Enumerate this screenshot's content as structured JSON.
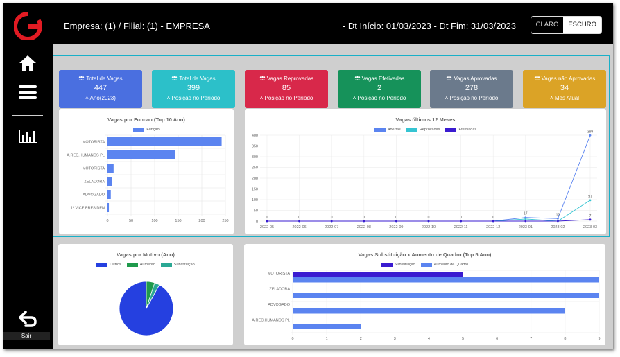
{
  "sidebar": {
    "logo_icon": "g-logo-icon",
    "home_icon": "home-icon",
    "menu_icon": "hamburger-menu-icon",
    "reports_icon": "bar-chart-icon",
    "logout_icon": "logout-arrow-icon",
    "logout_label": "Sair"
  },
  "header": {
    "empresa": "Empresa: (1) / Filial: (1) -  EMPRESA",
    "dates": "- Dt Início: 01/03/2023 - Dt Fim: 31/03/2023",
    "theme_light": "CLARO",
    "theme_dark": "ESCURO"
  },
  "cards": [
    {
      "title": "Total de Vagas",
      "value": "447",
      "footer": "Ano(2023)",
      "color": "#4a6fe0"
    },
    {
      "title": "Total de Vagas",
      "value": "399",
      "footer": "Posição no Período",
      "color": "#2cc0c9"
    },
    {
      "title": "Vagas Reprovadas",
      "value": "85",
      "footer": "Posição no Período",
      "color": "#d8284a"
    },
    {
      "title": "Vagas Efetivadas",
      "value": "2",
      "footer": "Posição no Período",
      "color": "#16925a"
    },
    {
      "title": "Vagas Aprovadas",
      "value": "278",
      "footer": "Posição no Período",
      "color": "#6b7a8c"
    },
    {
      "title": "Vagas não Aprovadas",
      "value": "34",
      "footer": "Mês Atual",
      "color": "#dba326"
    }
  ],
  "chart_data": [
    {
      "type": "bar",
      "orientation": "horizontal",
      "title": "Vagas por Funcao (Top 10 Ano)",
      "categories": [
        "MOTORISTA",
        "A.REC.HUMANOS PL",
        "MOTORISTA",
        "ZELADORA",
        "ADVOGADO",
        "1º VICE PRESIDEN"
      ],
      "series": [
        {
          "name": "Função",
          "values": [
            242,
            143,
            13,
            10,
            7,
            3
          ],
          "color": "#5b84f0"
        }
      ],
      "xticks": [
        0,
        50,
        100,
        150,
        200,
        250
      ],
      "xlim": [
        0,
        250
      ]
    },
    {
      "type": "line",
      "title": "Vagas últimos 12 Meses",
      "categories": [
        "2022-05",
        "2022-06",
        "2022-07",
        "2022-08",
        "2022-09",
        "2022-10",
        "2022-11",
        "2022-12",
        "2023-01",
        "2023-02",
        "2023-03"
      ],
      "series": [
        {
          "name": "Abertas",
          "values": [
            0,
            0,
            0,
            0,
            0,
            0,
            0,
            0,
            17,
            12,
            399
          ],
          "color": "#5b84f0"
        },
        {
          "name": "Reprovadas",
          "values": [
            0,
            0,
            0,
            0,
            0,
            0,
            0,
            0,
            10,
            0,
            97
          ],
          "color": "#35c4d2"
        },
        {
          "name": "Efetivadas",
          "values": [
            0,
            0,
            0,
            0,
            0,
            0,
            0,
            0,
            0,
            0,
            7
          ],
          "color": "#3a1bd0"
        }
      ],
      "point_labels": [
        "0",
        "0",
        "0",
        "0",
        "0",
        "0",
        "0",
        "0",
        "17",
        "12",
        "399"
      ],
      "extra_labels": {
        "Reprovadas": "97",
        "Efetivadas": "7"
      },
      "yticks": [
        0,
        50,
        100,
        150,
        200,
        250,
        300,
        350,
        400
      ],
      "ylim": [
        0,
        400
      ]
    },
    {
      "type": "pie",
      "title": "Vagas por Motivo (Ano)",
      "labels": [
        "Outros",
        "Aumento",
        "Substituição"
      ],
      "values": [
        92,
        5,
        3
      ],
      "colors": [
        "#2540e0",
        "#1f9a4c",
        "#2ba894"
      ]
    },
    {
      "type": "bar",
      "orientation": "horizontal",
      "title": "Vagas Substituição x Aumento de Quadro (Top 5 Ano)",
      "categories": [
        "MOTORISTA",
        "ZELADORA",
        "ADVOGADO",
        "A.REC.HUMANOS PL"
      ],
      "series": [
        {
          "name": "Substituição",
          "values": [
            5,
            0,
            0,
            0
          ],
          "color": "#3a1bd0"
        },
        {
          "name": "Aumento de Quadro",
          "values": [
            9,
            9,
            8,
            2
          ],
          "color": "#5b84f0"
        }
      ],
      "xticks": [
        0,
        1,
        2,
        3,
        4,
        5,
        6,
        7,
        8,
        9
      ],
      "xlim": [
        0,
        9
      ]
    }
  ]
}
